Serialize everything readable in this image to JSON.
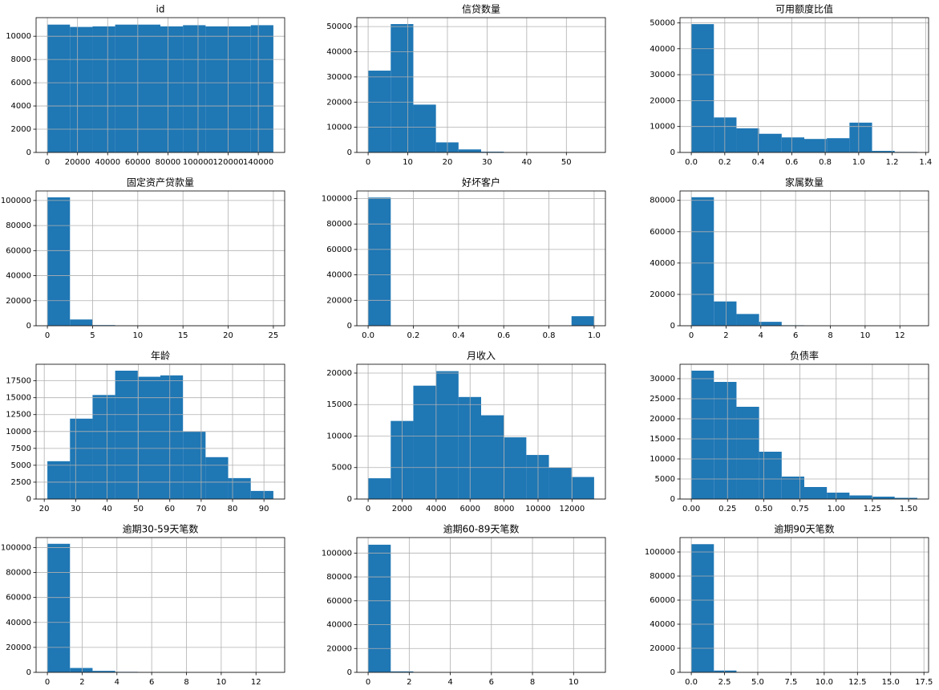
{
  "chart_data": [
    {
      "type": "histogram",
      "title": "id",
      "bins": [
        0,
        15000,
        30000,
        45000,
        60000,
        75000,
        90000,
        105000,
        120000,
        135000,
        150000
      ],
      "counts": [
        11000,
        10800,
        10850,
        11000,
        11000,
        10850,
        10950,
        10850,
        10850,
        10950
      ],
      "color": "#1f77b4",
      "xlim": [
        -7500,
        157500
      ],
      "ylim": [
        0,
        11600
      ],
      "xticks": [
        0,
        20000,
        40000,
        60000,
        80000,
        100000,
        120000,
        140000
      ],
      "yticks": [
        0,
        2000,
        4000,
        6000,
        8000,
        10000
      ],
      "grid": true
    },
    {
      "type": "histogram",
      "title": "信贷数量",
      "bins": [
        0,
        5.7,
        11.4,
        17.1,
        22.8,
        28.5,
        34.2,
        39.9,
        45.6,
        51.3,
        57
      ],
      "counts": [
        32500,
        51000,
        19000,
        4000,
        1200,
        300,
        50,
        10,
        2,
        1
      ],
      "color": "#1f77b4",
      "xlim": [
        -2.85,
        59.85
      ],
      "ylim": [
        0,
        53550
      ],
      "xticks": [
        0,
        10,
        20,
        30,
        40,
        50
      ],
      "yticks": [
        0,
        10000,
        20000,
        30000,
        40000,
        50000
      ],
      "grid": true
    },
    {
      "type": "histogram",
      "title": "可用额度比值",
      "bins": [
        0,
        0.135,
        0.27,
        0.405,
        0.54,
        0.675,
        0.81,
        0.945,
        1.08,
        1.215,
        1.35
      ],
      "counts": [
        49500,
        13500,
        9300,
        7200,
        5800,
        5200,
        5500,
        11500,
        600,
        200
      ],
      "color": "#1f77b4",
      "xlim": [
        -0.0675,
        1.4175
      ],
      "ylim": [
        0,
        52000
      ],
      "xticks": [
        {
          "value": 0,
          "label": "0.0"
        },
        0.2,
        0.4,
        0.6,
        0.8,
        {
          "value": 1,
          "label": "1.0"
        },
        1.2,
        1.4
      ],
      "yticks": [
        0,
        10000,
        20000,
        30000,
        40000,
        50000
      ],
      "grid": true
    },
    {
      "type": "histogram",
      "title": "固定资产贷款量",
      "bins": [
        0,
        2.5,
        5,
        7.5,
        10,
        12.5,
        15,
        17.5,
        20,
        22.5,
        25
      ],
      "counts": [
        102500,
        5000,
        500,
        50,
        10,
        5,
        2,
        1,
        0,
        1
      ],
      "color": "#1f77b4",
      "xlim": [
        -1.25,
        26.25
      ],
      "ylim": [
        0,
        107600
      ],
      "xticks": [
        0,
        5,
        10,
        15,
        20,
        25
      ],
      "yticks": [
        0,
        20000,
        40000,
        60000,
        80000,
        100000
      ],
      "grid": true
    },
    {
      "type": "histogram",
      "title": "好坏客户",
      "bins": [
        0,
        0.1,
        0.2,
        0.3,
        0.4,
        0.5,
        0.6,
        0.7,
        0.8,
        0.9,
        1
      ],
      "counts": [
        100800,
        0,
        0,
        0,
        0,
        0,
        0,
        0,
        0,
        7500
      ],
      "color": "#1f77b4",
      "xlim": [
        -0.05,
        1.05
      ],
      "ylim": [
        0,
        106000
      ],
      "xticks": [
        {
          "value": 0,
          "label": "0.0"
        },
        0.2,
        0.4,
        0.6,
        0.8,
        {
          "value": 1,
          "label": "1.0"
        }
      ],
      "yticks": [
        0,
        20000,
        40000,
        60000,
        80000,
        100000
      ],
      "grid": true
    },
    {
      "type": "histogram",
      "title": "家属数量",
      "bins": [
        0,
        1.3,
        2.6,
        3.9,
        5.2,
        6.5,
        7.8,
        9.1,
        10.4,
        11.7,
        13
      ],
      "counts": [
        82000,
        15500,
        7500,
        2500,
        300,
        50,
        10,
        0,
        0,
        1
      ],
      "color": "#1f77b4",
      "xlim": [
        -0.65,
        13.65
      ],
      "ylim": [
        0,
        86000
      ],
      "xticks": [
        0,
        2,
        4,
        6,
        8,
        10,
        12
      ],
      "yticks": [
        0,
        20000,
        40000,
        60000,
        80000
      ],
      "grid": true
    },
    {
      "type": "histogram",
      "title": "年龄",
      "bins": [
        21,
        28.2,
        35.4,
        42.6,
        49.8,
        57,
        64.2,
        71.4,
        78.6,
        85.8,
        93
      ],
      "counts": [
        5600,
        11900,
        15400,
        19000,
        18100,
        18300,
        10000,
        6200,
        3100,
        1200
      ],
      "color": "#1f77b4",
      "xlim": [
        17.4,
        96.6
      ],
      "ylim": [
        0,
        19950
      ],
      "xticks": [
        20,
        30,
        40,
        50,
        60,
        70,
        80,
        90
      ],
      "yticks": [
        0,
        2500,
        5000,
        7500,
        10000,
        12500,
        15000,
        17500
      ],
      "grid": true
    },
    {
      "type": "histogram",
      "title": "月收入",
      "bins": [
        0,
        1330,
        2660,
        3990,
        5320,
        6650,
        7980,
        9310,
        10640,
        11970,
        13300
      ],
      "counts": [
        3300,
        12400,
        18000,
        20300,
        16200,
        13300,
        9800,
        7000,
        5000,
        3500
      ],
      "color": "#1f77b4",
      "xlim": [
        -665,
        13965
      ],
      "ylim": [
        0,
        21400
      ],
      "xticks": [
        0,
        2000,
        4000,
        6000,
        8000,
        10000,
        12000
      ],
      "yticks": [
        0,
        5000,
        10000,
        15000,
        20000
      ],
      "grid": true
    },
    {
      "type": "histogram",
      "title": "负债率",
      "bins": [
        0,
        0.156,
        0.312,
        0.468,
        0.624,
        0.78,
        0.936,
        1.092,
        1.248,
        1.404,
        1.56
      ],
      "counts": [
        32000,
        29200,
        23000,
        11800,
        5600,
        3000,
        1600,
        900,
        600,
        300
      ],
      "color": "#1f77b4",
      "xlim": [
        -0.078,
        1.638
      ],
      "ylim": [
        0,
        33600
      ],
      "xticks": [
        {
          "value": 0,
          "label": "0.00"
        },
        0.25,
        {
          "value": 0.5,
          "label": "0.50"
        },
        0.75,
        {
          "value": 1,
          "label": "1.00"
        },
        1.25,
        {
          "value": 1.5,
          "label": "1.50"
        }
      ],
      "yticks": [
        0,
        5000,
        10000,
        15000,
        20000,
        25000,
        30000
      ],
      "grid": true
    },
    {
      "type": "histogram",
      "title": "逾期30-59天笔数",
      "bins": [
        0,
        1.3,
        2.6,
        3.9,
        5.2,
        6.5,
        7.8,
        9.1,
        10.4,
        11.7,
        13
      ],
      "counts": [
        103000,
        3500,
        1200,
        400,
        100,
        30,
        10,
        3,
        1,
        1
      ],
      "color": "#1f77b4",
      "xlim": [
        -0.65,
        13.65
      ],
      "ylim": [
        0,
        108000
      ],
      "xticks": [
        0,
        2,
        4,
        6,
        8,
        10,
        12
      ],
      "yticks": [
        0,
        20000,
        40000,
        60000,
        80000,
        100000
      ],
      "grid": true
    },
    {
      "type": "histogram",
      "title": "逾期60-89天笔数",
      "bins": [
        0,
        1.1,
        2.2,
        3.3,
        4.4,
        5.5,
        6.6,
        7.7,
        8.8,
        9.9,
        11
      ],
      "counts": [
        107000,
        800,
        100,
        20,
        5,
        2,
        1,
        0,
        0,
        1
      ],
      "color": "#1f77b4",
      "xlim": [
        -0.55,
        11.55
      ],
      "ylim": [
        0,
        113000
      ],
      "xticks": [
        0,
        2,
        4,
        6,
        8,
        10
      ],
      "yticks": [
        0,
        20000,
        40000,
        60000,
        80000,
        100000
      ],
      "grid": true
    },
    {
      "type": "histogram",
      "title": "逾期90天笔数",
      "bins": [
        0,
        1.7,
        3.4,
        5.1,
        6.8,
        8.5,
        10.2,
        11.9,
        13.6,
        15.3,
        17
      ],
      "counts": [
        106500,
        1500,
        200,
        50,
        10,
        5,
        2,
        0,
        0,
        1
      ],
      "color": "#1f77b4",
      "xlim": [
        -0.85,
        17.85
      ],
      "ylim": [
        0,
        112000
      ],
      "xticks": [
        {
          "value": 0,
          "label": "0.0"
        },
        2.5,
        {
          "value": 5,
          "label": "5.0"
        },
        7.5,
        {
          "value": 10,
          "label": "10.0"
        },
        12.5,
        {
          "value": 15,
          "label": "15.0"
        },
        17.5
      ],
      "yticks": [
        0,
        20000,
        40000,
        60000,
        80000,
        100000
      ],
      "grid": true
    }
  ]
}
